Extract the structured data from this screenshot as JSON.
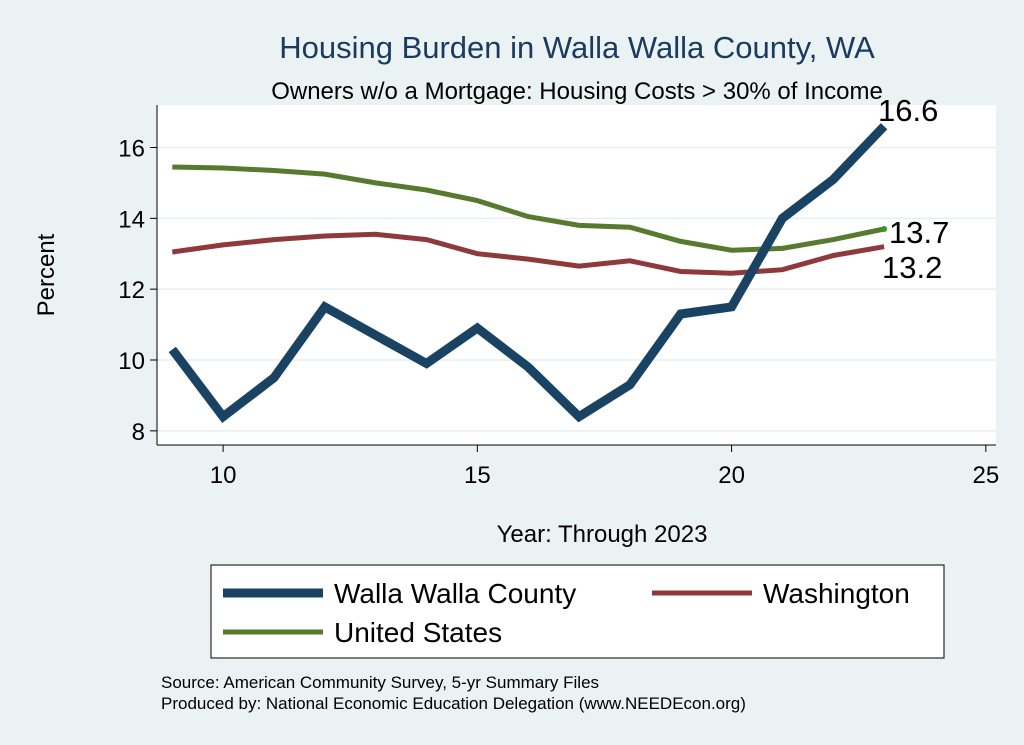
{
  "chart_data": {
    "type": "line",
    "title": "Housing Burden in Walla Walla County, WA",
    "subtitle": "Owners w/o a Mortgage: Housing Costs > 30% of Income",
    "xlabel": "Year: Through 2023",
    "ylabel": "Percent",
    "xlim": [
      8.7,
      25.2
    ],
    "ylim": [
      7.6,
      17.2
    ],
    "xticks": [
      10,
      15,
      20,
      25
    ],
    "yticks": [
      8,
      10,
      12,
      14,
      16
    ],
    "grid": true,
    "series": [
      {
        "name": "Walla Walla County",
        "color": "#1a4263",
        "x": [
          9,
          10,
          11,
          12,
          13,
          14,
          15,
          16,
          17,
          18,
          19,
          20,
          21,
          22,
          23
        ],
        "values": [
          10.3,
          8.4,
          9.5,
          11.5,
          10.7,
          9.9,
          10.9,
          9.8,
          8.4,
          9.3,
          11.3,
          11.5,
          14.0,
          15.1,
          16.6
        ],
        "end_label": "16.6"
      },
      {
        "name": "Washington",
        "color": "#8e3a3c",
        "x": [
          9,
          10,
          11,
          12,
          13,
          14,
          15,
          16,
          17,
          18,
          19,
          20,
          21,
          22,
          23
        ],
        "values": [
          13.05,
          13.25,
          13.4,
          13.5,
          13.55,
          13.4,
          13.0,
          12.85,
          12.65,
          12.8,
          12.5,
          12.45,
          12.55,
          12.95,
          13.2
        ],
        "end_label": "13.2"
      },
      {
        "name": "United States",
        "color": "#587a2e",
        "x": [
          9,
          10,
          11,
          12,
          13,
          14,
          15,
          16,
          17,
          18,
          19,
          20,
          21,
          22,
          23
        ],
        "values": [
          15.45,
          15.42,
          15.35,
          15.25,
          15.0,
          14.8,
          14.5,
          14.05,
          13.8,
          13.75,
          13.35,
          13.1,
          13.15,
          13.4,
          13.7
        ],
        "end_label": "13.7"
      }
    ],
    "legend": {
      "placement": "bottom",
      "entries": [
        "Walla Walla County",
        "Washington",
        "United States"
      ]
    }
  },
  "footer": {
    "source": "Source: American Community Survey, 5-yr Summary Files",
    "produced_by": "Produced by: National Economic Education Delegation (www.NEEDEcon.org)"
  }
}
